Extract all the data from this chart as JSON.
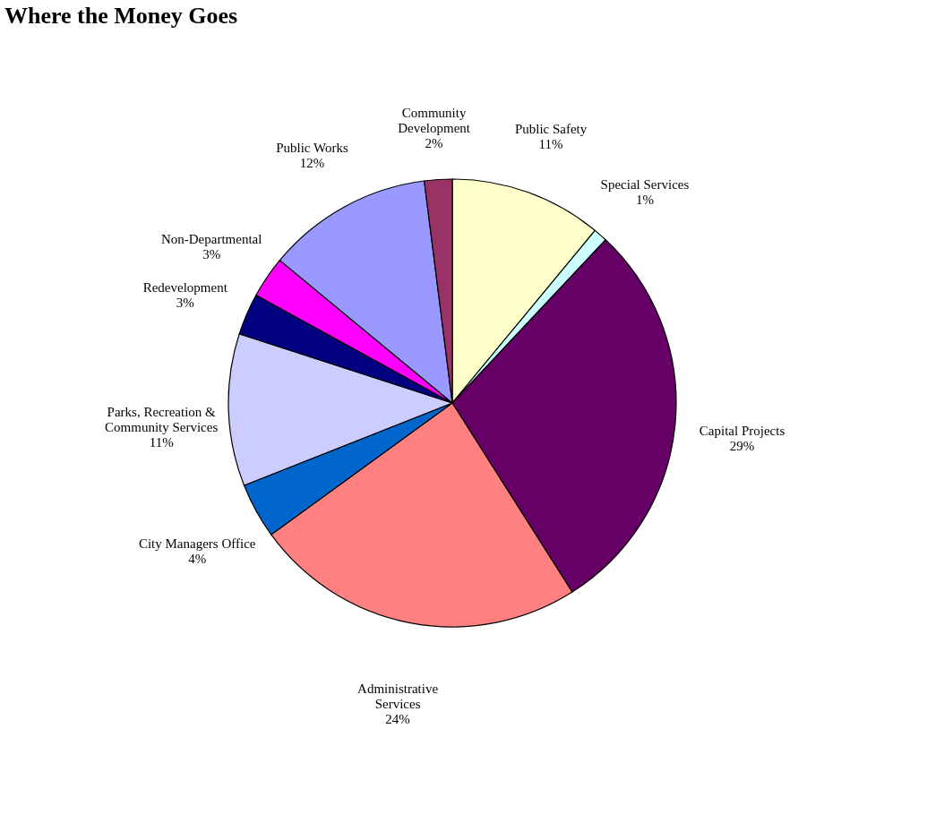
{
  "chart_data": {
    "type": "pie",
    "title": "Where the Money Goes",
    "categories": [
      "Public Safety",
      "Special Services",
      "Capital Projects",
      "Administrative Services",
      "City Managers Office",
      "Parks, Recreation & Community Services",
      "Redevelopment",
      "Non-Departmental",
      "Public Works",
      "Community Development"
    ],
    "values": [
      11,
      1,
      29,
      24,
      4,
      11,
      3,
      3,
      12,
      2
    ],
    "value_labels": [
      "11%",
      "1%",
      "29%",
      "24%",
      "4%",
      "11%",
      "3%",
      "3%",
      "12%",
      "2%"
    ],
    "colors": [
      "#ffffcc",
      "#ccffff",
      "#660066",
      "#ff8080",
      "#0066cc",
      "#ccccff",
      "#000080",
      "#ff00ff",
      "#9999ff",
      "#993366"
    ],
    "legend": false
  }
}
